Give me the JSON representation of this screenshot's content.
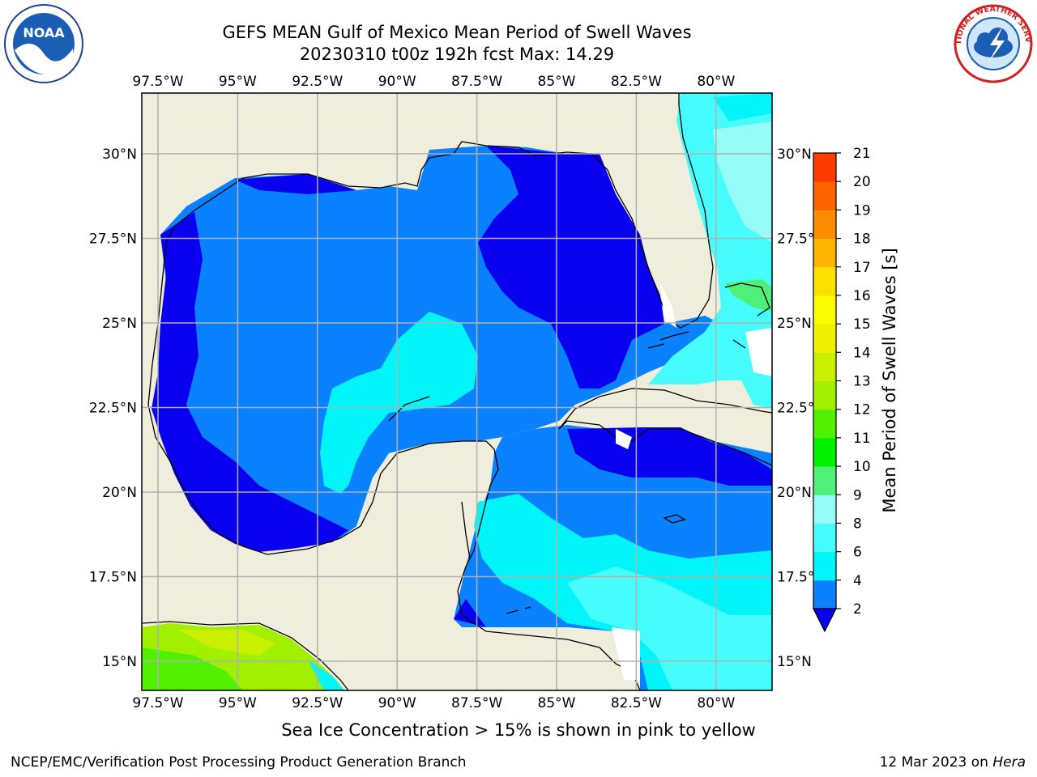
{
  "title": {
    "line1": "GEFS MEAN Gulf of Mexico Mean Period of Swell Waves",
    "line2": "20230310 t00z 192h fcst   Max: 14.29"
  },
  "map": {
    "lon_labels": [
      "97.5°W",
      "95°W",
      "92.5°W",
      "90°W",
      "87.5°W",
      "85°W",
      "82.5°W",
      "80°W"
    ],
    "lat_labels": [
      "30°N",
      "27.5°N",
      "25°N",
      "22.5°N",
      "20°N",
      "17.5°N",
      "15°N"
    ],
    "lon_range": [
      -98,
      -78.2
    ],
    "lat_range": [
      14,
      32
    ],
    "land_color": "#efeddc",
    "ocean_field_colors": {
      "lt4": "#0a81ff",
      "lt2": "#0a00f0",
      "4to6": "#00f4f8",
      "6to8": "#46fcfc",
      "8to9": "#96fcf6",
      "10to11": "#00f000",
      "12to13": "#c8f000"
    }
  },
  "colorbar": {
    "label": "Mean Period of Swell Waves [s]",
    "ticks": [
      "2",
      "4",
      "6",
      "8",
      "9",
      "10",
      "11",
      "12",
      "13",
      "14",
      "15",
      "16",
      "17",
      "18",
      "19",
      "20",
      "21"
    ],
    "colors": [
      "#0a81ff",
      "#00f4f8",
      "#46fcfc",
      "#96fcf6",
      "#50f078",
      "#00f000",
      "#50f000",
      "#a0f000",
      "#c8f000",
      "#f0f000",
      "#fcfc00",
      "#fce000",
      "#fcb400",
      "#fc8c00",
      "#fc6400",
      "#fc3c00",
      "#fc0000"
    ],
    "under_color": "#0a00f0"
  },
  "notes": {
    "ice": "Sea Ice Concentration > 15% is shown in pink to yellow"
  },
  "footer": {
    "left": "NCEP/EMC/Verification Post Processing Product Generation Branch",
    "date": "12 Mar 2023 on ",
    "machine": "Hera"
  },
  "logos": {
    "noaa_text": "NOAA",
    "nws_text": "NATIONAL WEATHER SERVICE"
  }
}
